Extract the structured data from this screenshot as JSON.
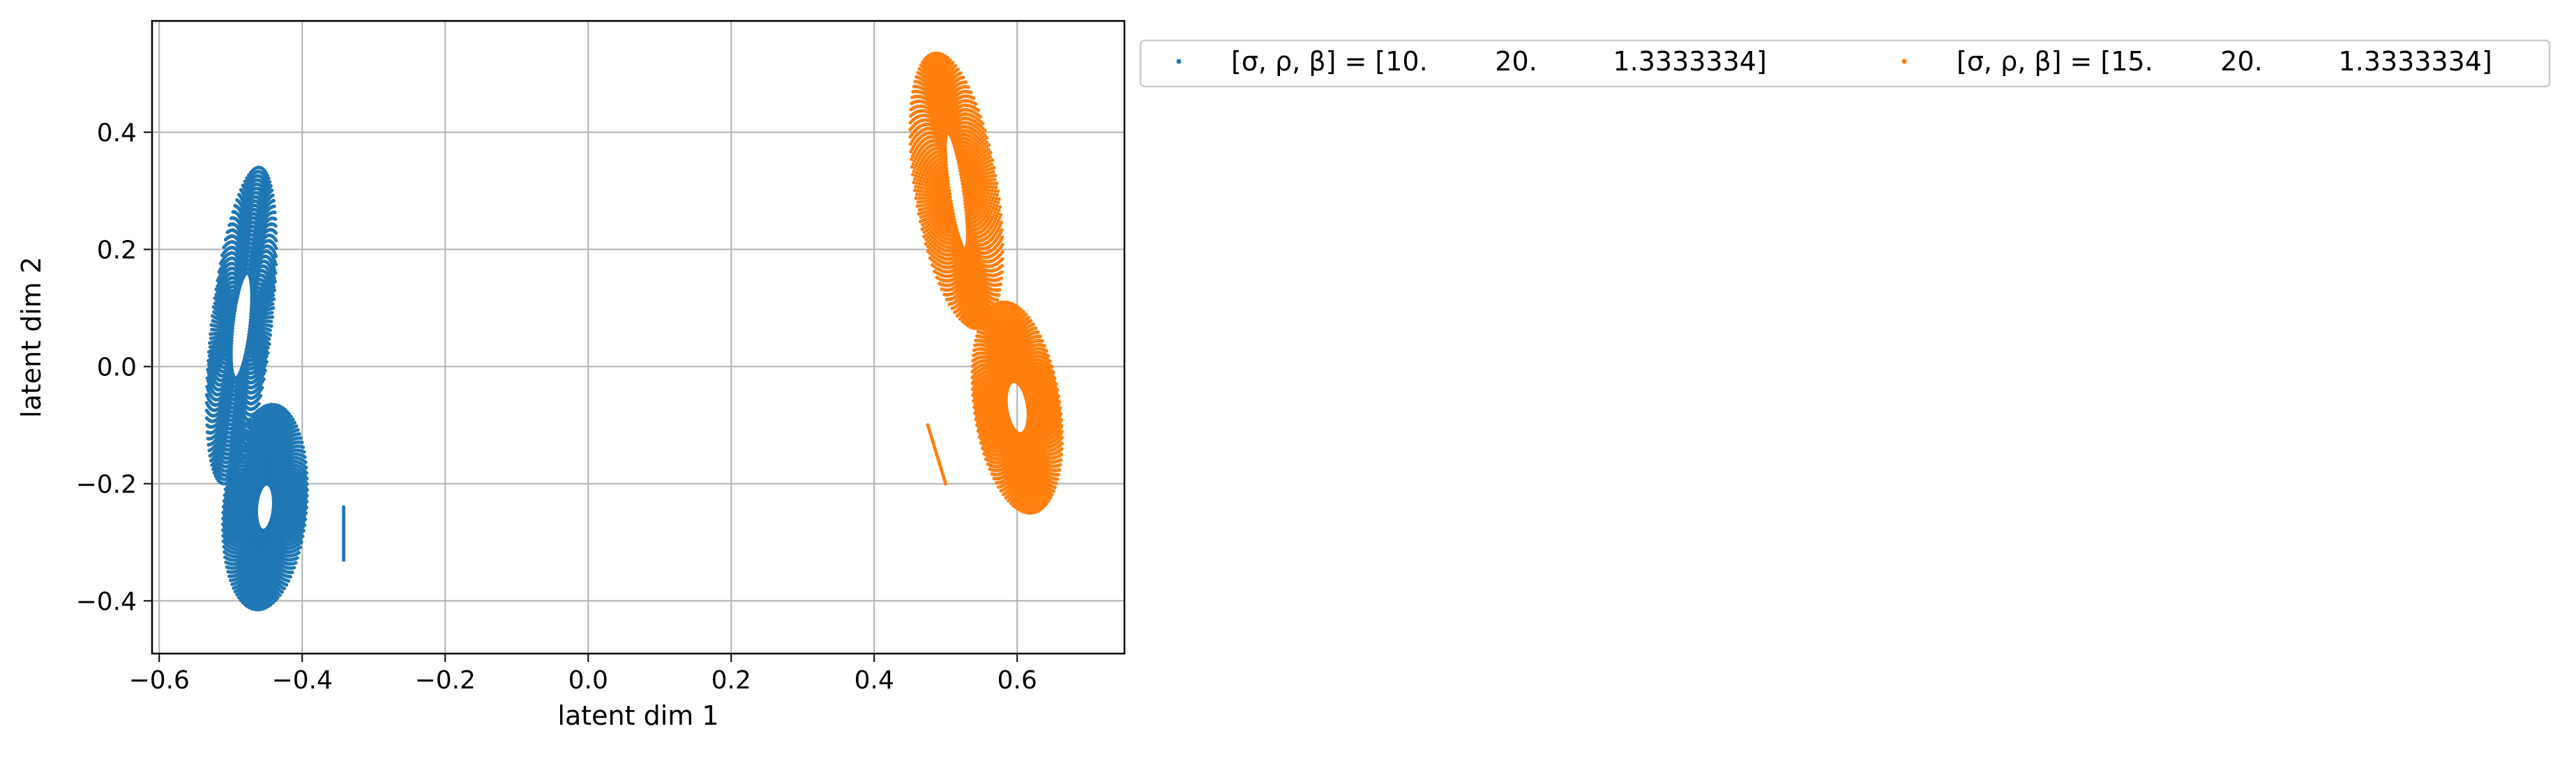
{
  "chart_data": {
    "type": "scatter",
    "xlabel": "latent dim 1",
    "ylabel": "latent dim 2",
    "xlim": [
      -0.61,
      0.75
    ],
    "ylim": [
      -0.49,
      0.59
    ],
    "xticks": [
      -0.6,
      -0.4,
      -0.2,
      0.0,
      0.2,
      0.4,
      0.6
    ],
    "xtick_labels": [
      "−0.6",
      "−0.4",
      "−0.2",
      "0.0",
      "0.2",
      "0.4",
      "0.6"
    ],
    "yticks": [
      -0.4,
      -0.2,
      0.0,
      0.2,
      0.4
    ],
    "ytick_labels": [
      "−0.4",
      "−0.2",
      "0.0",
      "0.2",
      "0.4"
    ],
    "grid": true,
    "legend_position": "outside-top-right",
    "series": [
      {
        "name": "[σ, ρ, β] = [10.        20.         1.3333334]",
        "color": "#1f77b4",
        "lobes": [
          {
            "center": [
              -0.485,
              0.07
            ],
            "radius_x": [
              0.012,
              0.042
            ],
            "radius_y": [
              0.09,
              0.27
            ],
            "tilt": 0.09
          },
          {
            "center": [
              -0.452,
              -0.24
            ],
            "radius_x": [
              0.012,
              0.058
            ],
            "radius_y": [
              0.04,
              0.175
            ],
            "tilt": 0.06
          }
        ],
        "tail": {
          "from": [
            -0.342,
            -0.24
          ],
          "to": [
            -0.342,
            -0.33
          ]
        }
      },
      {
        "name": "[σ, ρ, β] = [15.        20.         1.3333334]",
        "color": "#ff7f0e",
        "lobes": [
          {
            "center": [
              0.515,
              0.3
            ],
            "radius_x": [
              0.01,
              0.058
            ],
            "radius_y": [
              0.1,
              0.235
            ],
            "tilt": -0.12
          },
          {
            "center": [
              0.6,
              -0.07
            ],
            "radius_x": [
              0.015,
              0.06
            ],
            "radius_y": [
              0.045,
              0.18
            ],
            "tilt": -0.1
          }
        ],
        "tail": {
          "from": [
            0.475,
            -0.1
          ],
          "to": [
            0.5,
            -0.2
          ]
        }
      }
    ]
  }
}
